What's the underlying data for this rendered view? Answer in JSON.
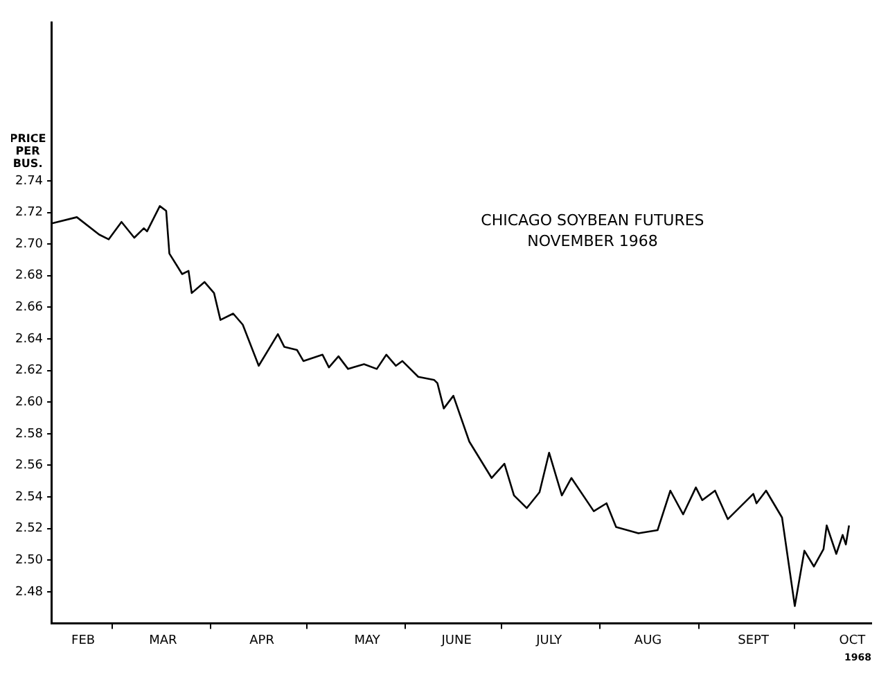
{
  "chart_data": {
    "type": "line",
    "title": "CHICAGO SOYBEAN FUTURES",
    "subtitle": "NOVEMBER 1968",
    "xlabel": "1968",
    "ylabel": "PRICE PER BUS.",
    "marker": "none",
    "x": [
      "1968-02-11",
      "1968-02-19",
      "1968-02-26",
      "1968-02-29",
      "1968-03-04",
      "1968-03-08",
      "1968-03-11",
      "1968-03-12",
      "1968-03-16",
      "1968-03-18",
      "1968-03-19",
      "1968-03-23",
      "1968-03-25",
      "1968-03-26",
      "1968-03-30",
      "1968-04-02",
      "1968-04-04",
      "1968-04-08",
      "1968-04-11",
      "1968-04-16",
      "1968-04-22",
      "1968-04-24",
      "1968-04-28",
      "1968-04-30",
      "1968-05-06",
      "1968-05-08",
      "1968-05-11",
      "1968-05-14",
      "1968-05-19",
      "1968-05-23",
      "1968-05-26",
      "1968-05-29",
      "1968-05-31",
      "1968-06-05",
      "1968-06-10",
      "1968-06-11",
      "1968-06-13",
      "1968-06-16",
      "1968-06-21",
      "1968-06-28",
      "1968-07-02",
      "1968-07-05",
      "1968-07-09",
      "1968-07-13",
      "1968-07-16",
      "1968-07-20",
      "1968-07-23",
      "1968-07-30",
      "1968-08-03",
      "1968-08-06",
      "1968-08-13",
      "1968-08-19",
      "1968-08-23",
      "1968-08-27",
      "1968-08-31",
      "1968-09-02",
      "1968-09-06",
      "1968-09-10",
      "1968-09-18",
      "1968-09-19",
      "1968-09-22",
      "1968-09-27",
      "1968-10-01",
      "1968-10-04",
      "1968-10-07",
      "1968-10-10",
      "1968-10-11",
      "1968-10-14",
      "1968-10-16",
      "1968-10-17",
      "1968-10-18"
    ],
    "values": [
      2.713,
      2.717,
      2.706,
      2.703,
      2.714,
      2.704,
      2.71,
      2.708,
      2.724,
      2.721,
      2.694,
      2.681,
      2.683,
      2.669,
      2.676,
      2.669,
      2.652,
      2.656,
      2.649,
      2.623,
      2.643,
      2.635,
      2.633,
      2.626,
      2.63,
      2.622,
      2.629,
      2.621,
      2.624,
      2.621,
      2.63,
      2.623,
      2.626,
      2.616,
      2.614,
      2.612,
      2.596,
      2.604,
      2.575,
      2.552,
      2.561,
      2.541,
      2.533,
      2.543,
      2.568,
      2.541,
      2.552,
      2.531,
      2.536,
      2.521,
      2.517,
      2.519,
      2.544,
      2.529,
      2.546,
      2.538,
      2.544,
      2.526,
      2.542,
      2.536,
      2.544,
      2.527,
      2.471,
      2.506,
      2.496,
      2.507,
      2.522,
      2.504,
      2.516,
      2.51,
      2.522
    ],
    "color": "#000000",
    "xlim": [
      "1968-02-11",
      "1968-10-25"
    ],
    "xticks": [
      {
        "value": "1968-02-21",
        "label": "FEB"
      },
      {
        "value": "1968-03-01",
        "label": null
      },
      {
        "value": "1968-03-17",
        "label": "MAR"
      },
      {
        "value": "1968-04-01",
        "label": null
      },
      {
        "value": "1968-04-17",
        "label": "APR"
      },
      {
        "value": "1968-05-01",
        "label": null
      },
      {
        "value": "1968-05-20",
        "label": "MAY"
      },
      {
        "value": "1968-06-01",
        "label": null
      },
      {
        "value": "1968-06-17",
        "label": "JUNE"
      },
      {
        "value": "1968-07-01",
        "label": null
      },
      {
        "value": "1968-07-16",
        "label": "JULY"
      },
      {
        "value": "1968-08-01",
        "label": null
      },
      {
        "value": "1968-08-16",
        "label": "AUG"
      },
      {
        "value": "1968-09-01",
        "label": null
      },
      {
        "value": "1968-09-18",
        "label": "SEPT"
      },
      {
        "value": "1968-10-01",
        "label": null
      },
      {
        "value": "1968-10-19",
        "label": "OCT"
      }
    ],
    "ylim": [
      2.46,
      2.84
    ],
    "yticks": [
      2.48,
      {
        "value": 2.5,
        "label": "2.50"
      },
      2.52,
      2.54,
      2.56,
      2.58,
      {
        "value": 2.6,
        "label": "2.60"
      },
      2.62,
      2.64,
      2.66,
      2.68,
      {
        "value": 2.7,
        "label": "2.70"
      },
      2.72,
      2.74
    ]
  }
}
